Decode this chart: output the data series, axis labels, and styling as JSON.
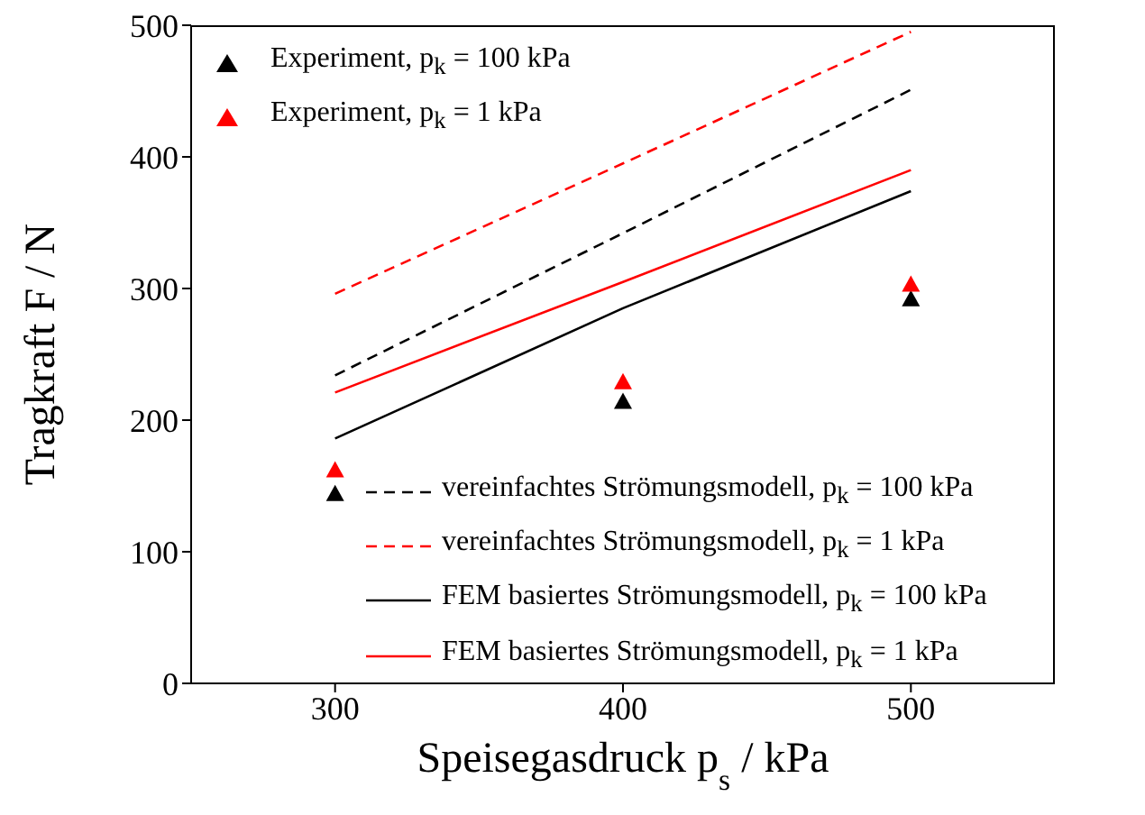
{
  "chart_data": {
    "type": "line",
    "xlabel": "Speisegasdruck p$_{s}$ / kPa",
    "ylabel": "Tragkraft F / N",
    "x": [
      300,
      400,
      500
    ],
    "xlim": [
      250,
      550
    ],
    "xticks": [
      300,
      400,
      500
    ],
    "ylim": [
      0,
      500
    ],
    "yticks": [
      0,
      100,
      200,
      300,
      400,
      500
    ],
    "grid": false,
    "legend": "left",
    "series": [
      {
        "name": "Experiment, p$_{k}$ = 100 kPa",
        "type": "scatter",
        "marker": "triangle",
        "color": "#000000",
        "values": [
          144,
          214,
          292
        ]
      },
      {
        "name": "Experiment, p$_{k}$ = 1 kPa",
        "type": "scatter",
        "marker": "triangle",
        "color": "#ff0000",
        "values": [
          162,
          229,
          303
        ]
      },
      {
        "name": "vereinfachtes Strömungsmodell, p$_{k}$ = 100 kPa",
        "type": "line",
        "line_style": "dashed",
        "color": "#000000",
        "values": [
          234,
          342,
          451
        ]
      },
      {
        "name": "vereinfachtes Strömungsmodell, p$_{k}$ = 1 kPa",
        "type": "line",
        "line_style": "dashed",
        "color": "#ff0000",
        "values": [
          296,
          395,
          495
        ]
      },
      {
        "name": "FEM basiertes Strömungsmodell, p$_{k}$ = 100 kPa",
        "type": "line",
        "line_style": "solid",
        "color": "#000000",
        "values": [
          186,
          285,
          374
        ]
      },
      {
        "name": "FEM basiertes Strömungsmodell, p$_{k}$ = 1 kPa",
        "type": "line",
        "line_style": "solid",
        "color": "#ff0000",
        "values": [
          221,
          305,
          390
        ]
      }
    ]
  }
}
